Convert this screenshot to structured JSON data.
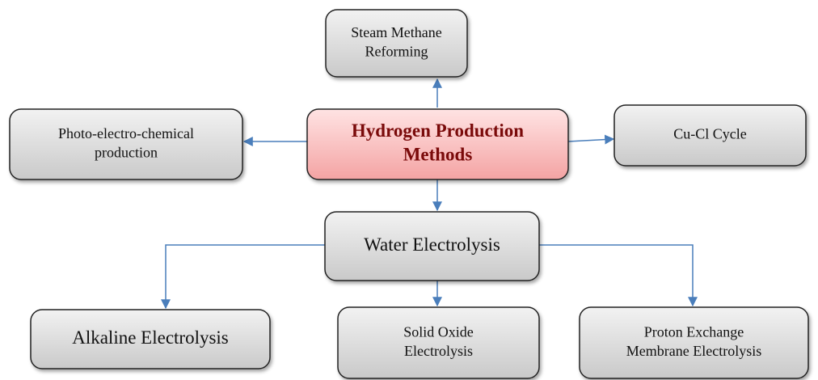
{
  "nodes": [
    {
      "label": [
        "Hydrogen Production",
        "Methods"
      ]
    },
    {
      "label": [
        "Steam Methane",
        "Reforming"
      ]
    },
    {
      "label": [
        "Photo-electro-chemical",
        "production"
      ]
    },
    {
      "label": [
        "Cu-Cl Cycle"
      ]
    },
    {
      "label": [
        "Water Electrolysis"
      ]
    },
    {
      "label": [
        "Alkaline Electrolysis"
      ]
    },
    {
      "label": [
        "Solid Oxide",
        "Electrolysis"
      ]
    },
    {
      "label": [
        "Proton Exchange",
        "Membrane Electrolysis"
      ]
    }
  ]
}
